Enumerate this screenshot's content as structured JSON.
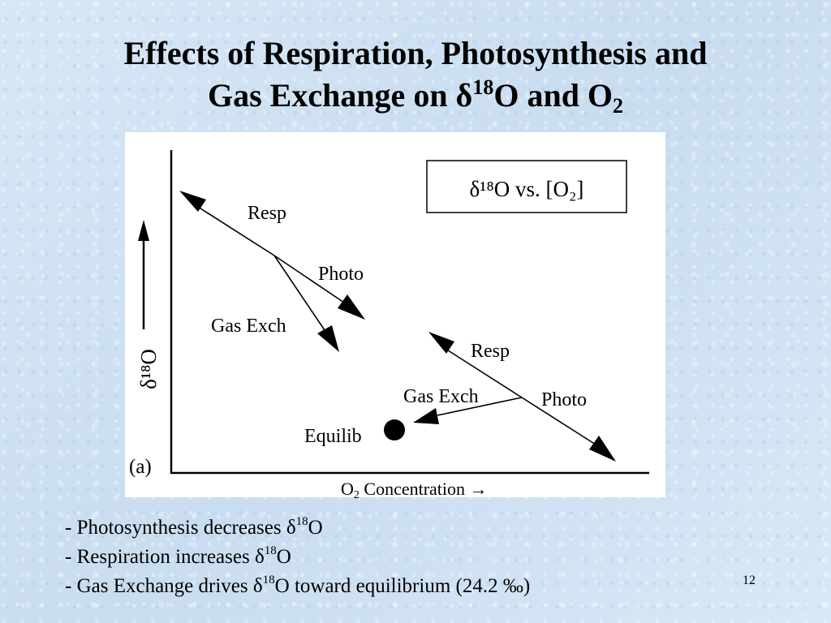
{
  "slide": {
    "title_line1": "Effects of Respiration, Photosynthesis and",
    "title_line2_prefix": "Gas Exchange on δ",
    "title_line2_sup": "18",
    "title_line2_mid": "O and O",
    "title_line2_sub": "2",
    "page_number": "12"
  },
  "figure": {
    "legend_text": "δ¹⁸O vs. [O₂]",
    "y_axis_label": "δ¹⁸O",
    "panel_label": "(a)",
    "upper_resp": "Resp",
    "upper_photo": "Photo",
    "upper_gas_exch": "Gas Exch",
    "lower_resp": "Resp",
    "lower_photo": "Photo",
    "lower_gas_exch": "Gas Exch",
    "equilib": "Equilib"
  },
  "axis_caption": {
    "prefix": "O",
    "sub": "2",
    "suffix": " Concentration ",
    "arrow": "→"
  },
  "bullets": [
    {
      "prefix": "- Photosynthesis decreases δ",
      "sup": "18",
      "suffix": "O"
    },
    {
      "prefix": "- Respiration increases δ",
      "sup": "18",
      "suffix": "O"
    },
    {
      "prefix": "- Gas Exchange drives δ",
      "sup": "18",
      "suffix": "O toward equilibrium (24.2 ‰)"
    }
  ],
  "colors": {
    "background": "#d3e4f3",
    "figure_background": "#ffffff",
    "ink": "#000000"
  }
}
